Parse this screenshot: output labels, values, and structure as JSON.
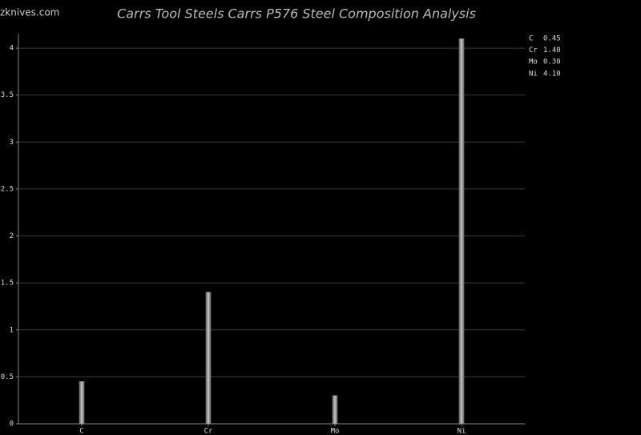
{
  "watermark": "zknives.com",
  "chart_data": {
    "type": "bar",
    "title": "Carrs Tool Steels Carrs P576 Steel Composition Analysis",
    "categories": [
      "C",
      "Cr",
      "Mo",
      "Ni"
    ],
    "values": [
      0.45,
      1.4,
      0.3,
      4.1
    ],
    "value_labels": [
      "0.45",
      "1.40",
      "0.30",
      "4.10"
    ],
    "color": "#9a9a9a",
    "ylim": [
      0,
      4.12
    ],
    "yticks": [
      0,
      0.5,
      1,
      1.5,
      2,
      2.5,
      3,
      3.5,
      4
    ],
    "grid": true
  }
}
